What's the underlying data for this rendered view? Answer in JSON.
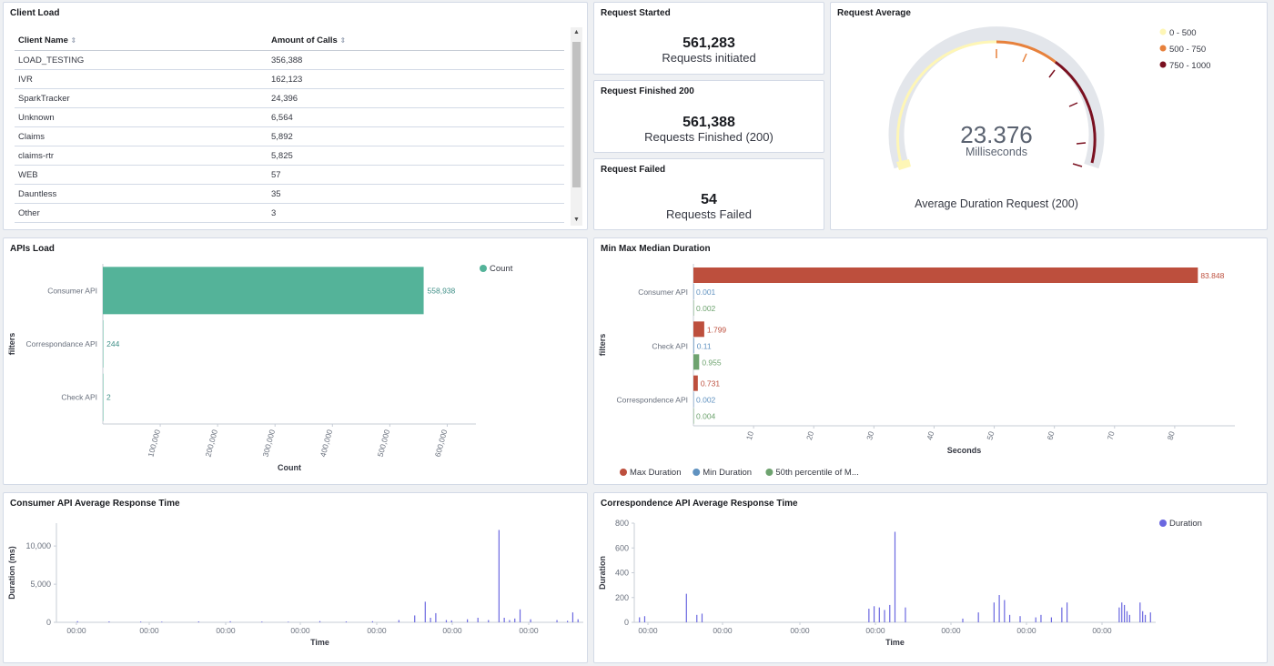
{
  "client_load": {
    "title": "Client Load",
    "columns": [
      "Client Name",
      "Amount of Calls"
    ],
    "rows": [
      [
        "LOAD_TESTING",
        "356,388"
      ],
      [
        "IVR",
        "162,123"
      ],
      [
        "SparkTracker",
        "24,396"
      ],
      [
        "Unknown",
        "6,564"
      ],
      [
        "Claims",
        "5,892"
      ],
      [
        "claims-rtr",
        "5,825"
      ],
      [
        "WEB",
        "57"
      ],
      [
        "Dauntless",
        "35"
      ],
      [
        "Other",
        "3"
      ]
    ],
    "sort_icon": "sort-icon"
  },
  "request_started": {
    "title": "Request Started",
    "value": "561,283",
    "label": "Requests initiated"
  },
  "request_finished": {
    "title": "Request Finished 200",
    "value": "561,388",
    "label": "Requests Finished (200)"
  },
  "request_failed": {
    "title": "Request Failed",
    "value": "54",
    "label": "Requests Failed"
  },
  "request_average": {
    "title": "Request Average",
    "value": "23.376",
    "unit": "Milliseconds",
    "caption": "Average Duration Request (200)",
    "ranges": [
      {
        "label": "0 - 500",
        "color": "#fef6b6"
      },
      {
        "label": "500 - 750",
        "color": "#e7813c"
      },
      {
        "label": "750 - 1000",
        "color": "#7a1020"
      }
    ]
  },
  "chart_data": [
    {
      "type": "bar",
      "orientation": "horizontal",
      "title": "APIs Load",
      "xlabel": "Count",
      "ylabel": "filters",
      "categories": [
        "Consumer API",
        "Correspondance API",
        "Check API"
      ],
      "series": [
        {
          "name": "Count",
          "values": [
            558938,
            244,
            2
          ],
          "labels": [
            "558,938",
            "244",
            "2"
          ],
          "color": "#54b399"
        }
      ],
      "xticks": [
        "100,000",
        "200,000",
        "300,000",
        "400,000",
        "500,000",
        "600,000"
      ],
      "xlim": [
        0,
        650000
      ],
      "legend": "top-right"
    },
    {
      "type": "bar",
      "orientation": "horizontal",
      "title": "Min Max Median Duration",
      "xlabel": "Seconds",
      "ylabel": "filters",
      "categories": [
        "Consumer API",
        "Check API",
        "Correspondence API"
      ],
      "series": [
        {
          "name": "Max Duration",
          "values": [
            83.848,
            1.799,
            0.731
          ],
          "labels": [
            "83.848",
            "1.799",
            "0.731"
          ],
          "color": "#bd4f3d"
        },
        {
          "name": "Min Duration",
          "values": [
            0.001,
            0.11,
            0.002
          ],
          "labels": [
            "0.001",
            "0.11",
            "0.002"
          ],
          "color": "#6092c0"
        },
        {
          "name": "50th percentile of M...",
          "values": [
            0.002,
            0.955,
            0.004
          ],
          "labels": [
            "0.002",
            "0.955",
            "0.004"
          ],
          "color": "#6ea36f"
        }
      ],
      "xticks": [
        "10",
        "20",
        "30",
        "40",
        "50",
        "60",
        "70",
        "80"
      ],
      "xlim": [
        0,
        90
      ],
      "legend": "bottom"
    },
    {
      "type": "bar",
      "title": "Consumer API Average Response Time",
      "xlabel": "Time",
      "ylabel": "Duration (ms)",
      "yticks": [
        "0",
        "5,000",
        "10,000"
      ],
      "ylim": [
        0,
        13000
      ],
      "xticks": [
        "00:00",
        "00:00",
        "00:00",
        "00:00",
        "00:00",
        "00:00",
        "00:00"
      ],
      "x": [
        0.04,
        0.1,
        0.16,
        0.2,
        0.27,
        0.33,
        0.39,
        0.44,
        0.5,
        0.55,
        0.6,
        0.65,
        0.68,
        0.7,
        0.71,
        0.72,
        0.74,
        0.75,
        0.78,
        0.8,
        0.82,
        0.84,
        0.85,
        0.86,
        0.87,
        0.88,
        0.9,
        0.95,
        0.97,
        0.98,
        0.99
      ],
      "series": [
        {
          "name": "Duration",
          "color": "#6a67e0",
          "values": [
            150,
            120,
            100,
            90,
            120,
            140,
            100,
            80,
            160,
            120,
            140,
            300,
            900,
            2700,
            600,
            1200,
            300,
            250,
            400,
            600,
            300,
            12100,
            600,
            300,
            500,
            1700,
            400,
            300,
            200,
            1300,
            400
          ]
        }
      ]
    },
    {
      "type": "bar",
      "title": "Correspondence API Average Response Time",
      "xlabel": "Time",
      "ylabel": "Duration",
      "yticks": [
        "0",
        "200",
        "400",
        "600",
        "800"
      ],
      "ylim": [
        0,
        800
      ],
      "xticks": [
        "00:00",
        "00:00",
        "00:00",
        "00:00",
        "00:00",
        "00:00",
        "00:00"
      ],
      "x": [
        0.01,
        0.02,
        0.1,
        0.12,
        0.13,
        0.45,
        0.46,
        0.47,
        0.48,
        0.49,
        0.5,
        0.52,
        0.63,
        0.66,
        0.69,
        0.7,
        0.71,
        0.72,
        0.74,
        0.77,
        0.78,
        0.8,
        0.82,
        0.83,
        0.93,
        0.935,
        0.94,
        0.945,
        0.95,
        0.97,
        0.975,
        0.98,
        0.99
      ],
      "series": [
        {
          "name": "Duration",
          "color": "#6a67e0",
          "values": [
            40,
            50,
            230,
            60,
            70,
            110,
            130,
            120,
            100,
            140,
            730,
            120,
            30,
            80,
            160,
            220,
            180,
            60,
            50,
            40,
            60,
            40,
            120,
            160,
            120,
            160,
            140,
            90,
            60,
            160,
            90,
            60,
            80
          ]
        }
      ],
      "legend": "top-right"
    }
  ]
}
